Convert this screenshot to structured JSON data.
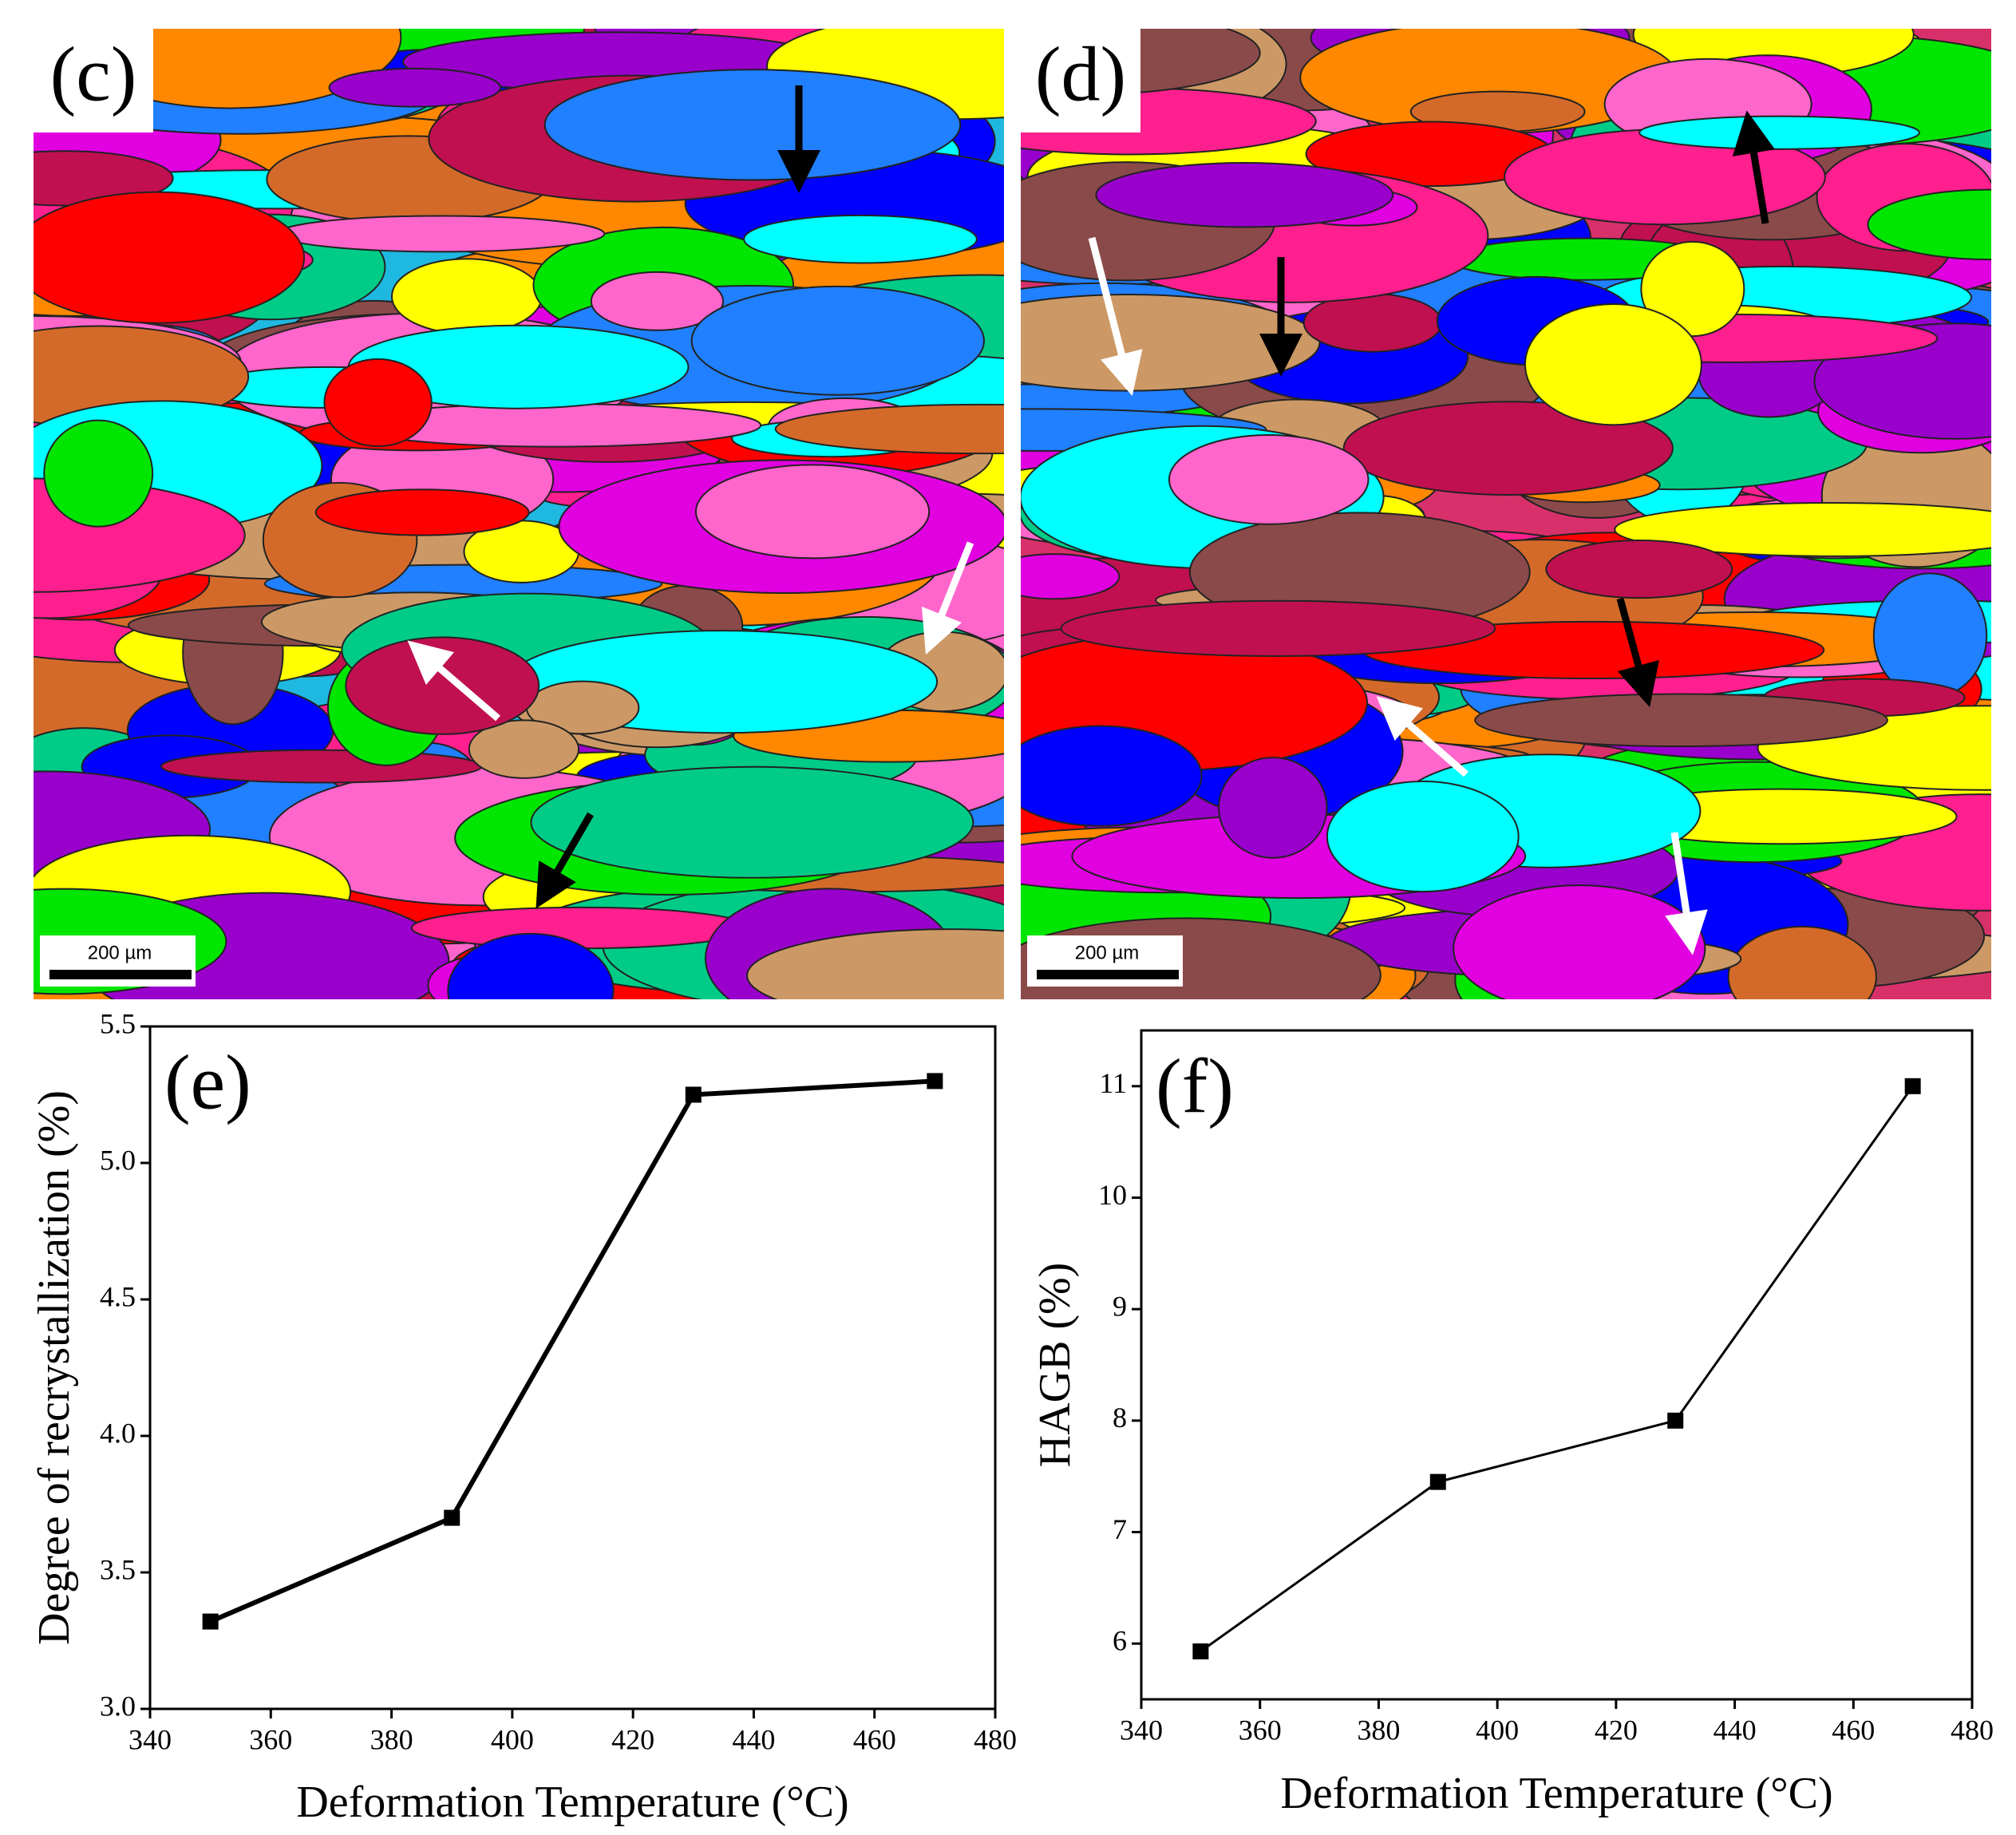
{
  "panels": [
    {
      "label": "(c)",
      "scale_bar": "200 µm"
    },
    {
      "label": "(d)",
      "scale_bar": "200 µm"
    }
  ],
  "chart_data": [
    {
      "type": "line",
      "annotation": "(e)",
      "x_label": "Deformation Temperature (°C)",
      "y_label": "Degree of recrystallization (%)",
      "x": [
        350,
        390,
        430,
        470
      ],
      "values": [
        3.32,
        3.7,
        5.25,
        5.3
      ],
      "color": "#000000",
      "xlim": [
        340,
        480
      ],
      "xticks": [
        340,
        360,
        380,
        400,
        420,
        440,
        460,
        480
      ],
      "ylim": [
        3.0,
        5.5
      ],
      "yticks": [
        {
          "value": 3,
          "label": "3.0"
        },
        3.5,
        {
          "value": 4,
          "label": "4.0"
        },
        4.5,
        {
          "value": 5,
          "label": "5.0"
        },
        5.5
      ]
    },
    {
      "type": "line",
      "annotation": "(f)",
      "x_label": "Deformation Temperature (°C)",
      "y_label": "HAGB (%)",
      "x": [
        350,
        390,
        430,
        470
      ],
      "values": [
        5.93,
        7.45,
        8.0,
        11.0
      ],
      "color": "#000000",
      "xlim": [
        340,
        480
      ],
      "xticks": [
        340,
        360,
        380,
        400,
        420,
        440,
        460,
        480
      ],
      "ylim": [
        5.5,
        11.5
      ],
      "yticks": [
        6,
        7,
        8,
        9,
        10,
        11
      ]
    }
  ]
}
